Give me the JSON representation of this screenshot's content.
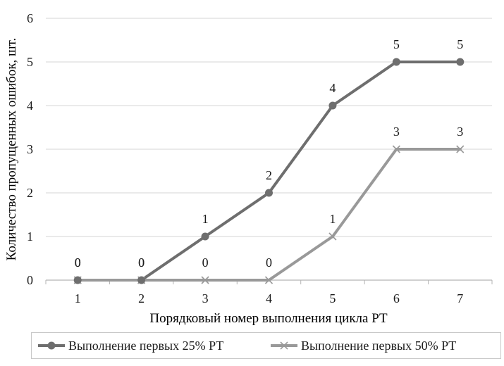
{
  "chart_data": {
    "type": "line",
    "x": [
      1,
      2,
      3,
      4,
      5,
      6,
      7
    ],
    "xlabel": "Порядковый номер выполнения цикла РТ",
    "ylabel": "Количество пропущенных ошибок, шт.",
    "ylim": [
      0,
      6
    ],
    "yticks": [
      0,
      1,
      2,
      3,
      4,
      5,
      6
    ],
    "grid": true,
    "legend_position": "bottom",
    "series": [
      {
        "name": "Выполнение первых 25% РТ",
        "marker": "circle",
        "color": "#6e6e6e",
        "values": [
          0,
          0,
          1,
          2,
          4,
          5,
          5
        ]
      },
      {
        "name": "Выполнение первых 50% РТ",
        "marker": "x",
        "color": "#999999",
        "values": [
          0,
          0,
          0,
          0,
          1,
          3,
          3
        ]
      }
    ]
  }
}
